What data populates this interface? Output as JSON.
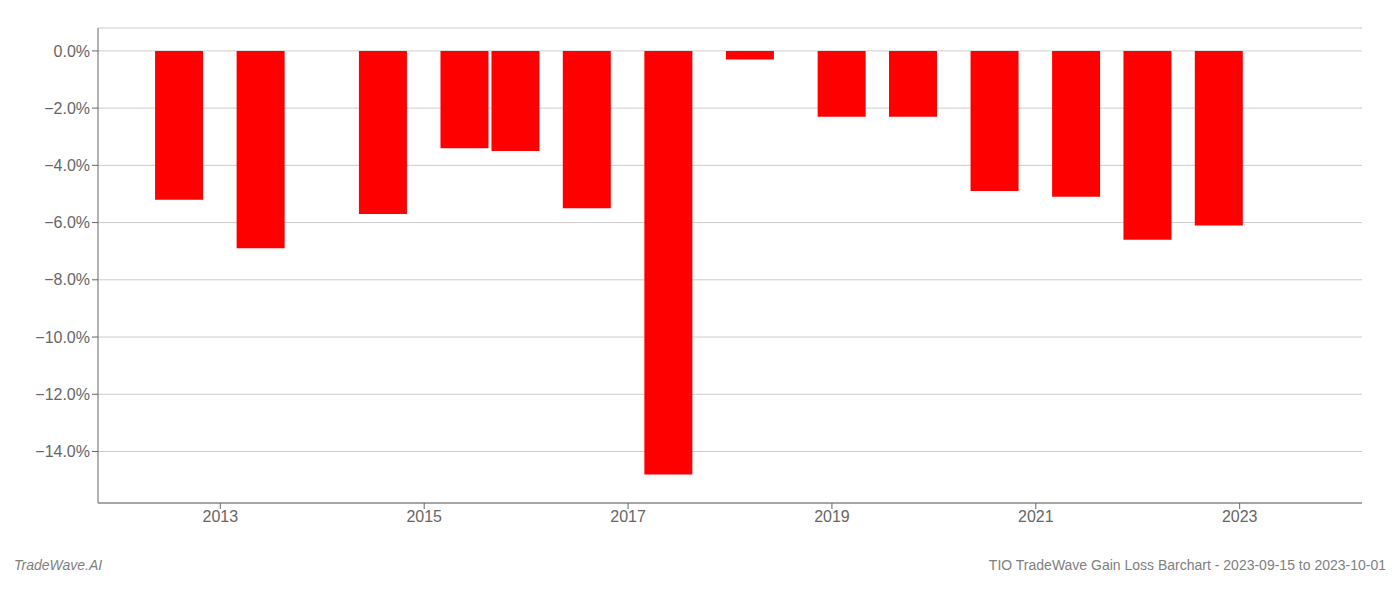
{
  "chart_data": {
    "type": "bar",
    "x": [
      2012.6,
      2013.4,
      2014.6,
      2015.4,
      2015.9,
      2016.6,
      2017.4,
      2018.2,
      2019.1,
      2019.8,
      2020.6,
      2021.4,
      2022.1,
      2022.8
    ],
    "values": [
      -5.2,
      -6.9,
      -5.7,
      -3.4,
      -3.5,
      -5.5,
      -14.8,
      -0.3,
      -2.3,
      -2.3,
      -4.9,
      -5.1,
      -6.6,
      -6.1
    ],
    "color": "#ff0000",
    "xlim": [
      2011.8,
      2024.2
    ],
    "xticks": [
      2013,
      2015,
      2017,
      2019,
      2021,
      2023
    ],
    "ylim": [
      -15.8,
      0.8
    ],
    "yticks": [
      {
        "value": 0.0,
        "label": "0.0%"
      },
      {
        "value": -2.0,
        "label": "−2.0%"
      },
      {
        "value": -4.0,
        "label": "−4.0%"
      },
      {
        "value": -6.0,
        "label": "−6.0%"
      },
      {
        "value": -8.0,
        "label": "−8.0%"
      },
      {
        "value": -10.0,
        "label": "−10.0%"
      },
      {
        "value": -12.0,
        "label": "−12.0%"
      },
      {
        "value": -14.0,
        "label": "−14.0%"
      }
    ],
    "grid": true,
    "annotations": [
      "TradeWave.AI",
      "TIO TradeWave Gain Loss Barchart - 2023-09-15 to 2023-10-01"
    ]
  }
}
